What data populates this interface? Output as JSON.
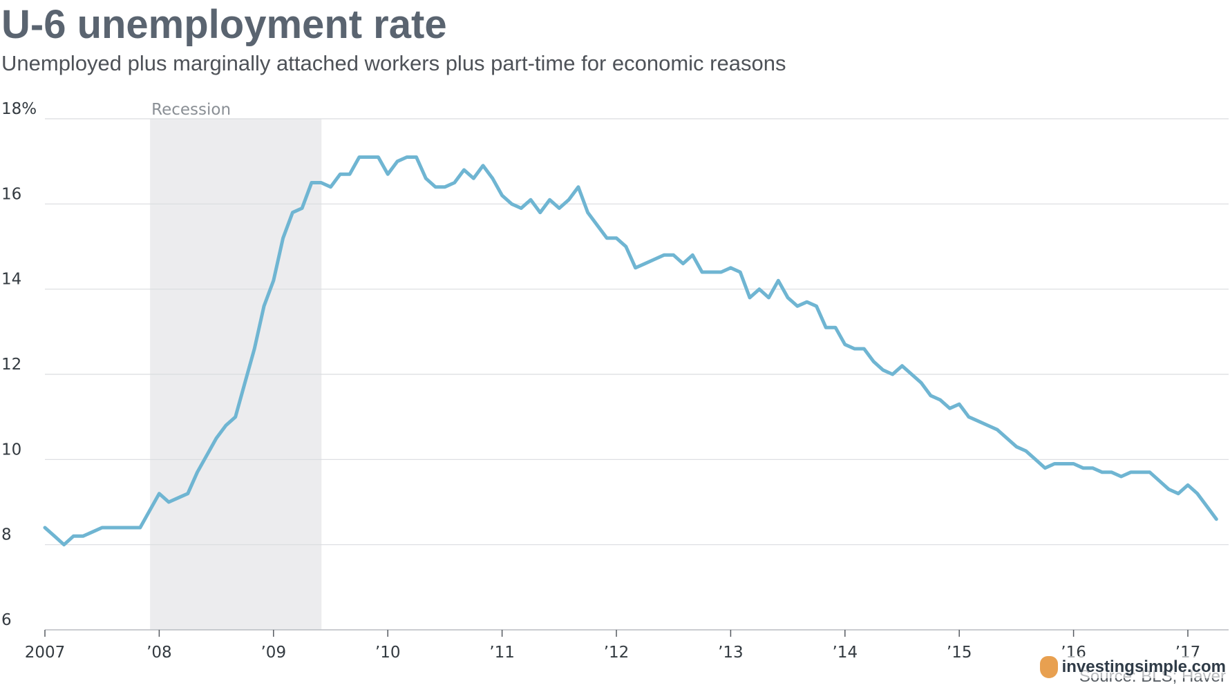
{
  "header": {
    "title": "U-6 unemployment rate",
    "subtitle": "Unemployed plus marginally attached workers plus part-time for economic reasons"
  },
  "source": "Source: BLS; Haver",
  "watermark": "investingsimple.com",
  "colors": {
    "line": "#6fb5d2",
    "recession": "#ececee",
    "grid": "#d9dcdf"
  },
  "chart_data": {
    "type": "line",
    "title": "U-6 unemployment rate",
    "subtitle": "Unemployed plus marginally attached workers plus part-time for economic reasons",
    "ylim": [
      6,
      18
    ],
    "yticks": [
      6,
      8,
      10,
      12,
      14,
      16,
      18
    ],
    "ytick_labels": [
      "6",
      "8",
      "10",
      "12",
      "14",
      "16",
      "18%"
    ],
    "xlim": [
      2007.0,
      2017.25
    ],
    "xticks": [
      2007,
      2008,
      2009,
      2010,
      2011,
      2012,
      2013,
      2014,
      2015,
      2016,
      2017
    ],
    "xtick_labels": [
      "2007",
      "’08",
      "’09",
      "’10",
      "’11",
      "’12",
      "’13",
      "’14",
      "’15",
      "’16",
      "’17"
    ],
    "recession": {
      "label": "Recession",
      "start": 2007.92,
      "end": 2009.42
    },
    "grid": true,
    "series": [
      {
        "start": "2007-01",
        "frequency": "monthly",
        "values": [
          8.4,
          8.2,
          8.0,
          8.2,
          8.2,
          8.3,
          8.4,
          8.4,
          8.4,
          8.4,
          8.4,
          8.8,
          9.2,
          9.0,
          9.1,
          9.2,
          9.7,
          10.1,
          10.5,
          10.8,
          11.0,
          11.8,
          12.6,
          13.6,
          14.2,
          15.2,
          15.8,
          15.9,
          16.5,
          16.5,
          16.4,
          16.7,
          16.7,
          17.1,
          17.1,
          17.1,
          16.7,
          17.0,
          17.1,
          17.1,
          16.6,
          16.4,
          16.4,
          16.5,
          16.8,
          16.6,
          16.9,
          16.6,
          16.2,
          16.0,
          15.9,
          16.1,
          15.8,
          16.1,
          15.9,
          16.1,
          16.4,
          15.8,
          15.5,
          15.2,
          15.2,
          15.0,
          14.5,
          14.6,
          14.7,
          14.8,
          14.8,
          14.6,
          14.8,
          14.4,
          14.4,
          14.4,
          14.5,
          14.4,
          13.8,
          14.0,
          13.8,
          14.2,
          13.8,
          13.6,
          13.7,
          13.6,
          13.1,
          13.1,
          12.7,
          12.6,
          12.6,
          12.3,
          12.1,
          12.0,
          12.2,
          12.0,
          11.8,
          11.5,
          11.4,
          11.2,
          11.3,
          11.0,
          10.9,
          10.8,
          10.7,
          10.5,
          10.3,
          10.2,
          10.0,
          9.8,
          9.9,
          9.9,
          9.9,
          9.8,
          9.8,
          9.7,
          9.7,
          9.6,
          9.7,
          9.7,
          9.7,
          9.5,
          9.3,
          9.2,
          9.4,
          9.2,
          8.9,
          8.6
        ]
      }
    ]
  }
}
